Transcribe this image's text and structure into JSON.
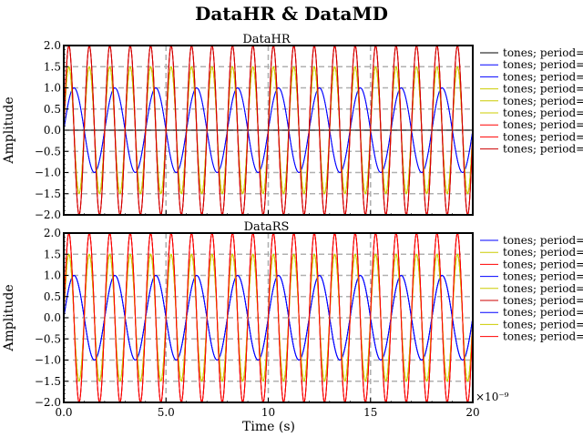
{
  "figure": {
    "title": "DataHR & DataMD",
    "xlabel": "Time (s)",
    "x_offset_text": "×10⁻⁹"
  },
  "chart_data": [
    {
      "type": "line",
      "title": "DataHR",
      "ylabel": "Amplitude",
      "xlabel": "",
      "xlim": [
        0,
        20
      ],
      "ylim": [
        -2.0,
        2.0
      ],
      "x_unit_scale": "1e-9",
      "xticks": [
        "0.0",
        "5.0",
        "10",
        "15",
        "20"
      ],
      "xtick_values": [
        0,
        5,
        10,
        15,
        20
      ],
      "yticks": [
        "2.0",
        "1.5",
        "1.0",
        "0.5",
        "0.0",
        "−0.5",
        "−1.0",
        "−1.5",
        "−2.0"
      ],
      "ytick_values": [
        2.0,
        1.5,
        1.0,
        0.5,
        0.0,
        -0.5,
        -1.0,
        -1.5,
        -2.0
      ],
      "grid": true,
      "legend_position": "outside-right",
      "series": [
        {
          "name": "tones; period=",
          "color": "#000000",
          "amplitude": 0,
          "period": 2.0,
          "phase": 0
        },
        {
          "name": "tones; period=",
          "color": "#0000ff",
          "amplitude": 1.0,
          "period": 2.0,
          "phase": 0
        },
        {
          "name": "tones; period=",
          "color": "#0000ff",
          "amplitude": 1.0,
          "period": 2.0,
          "phase": 0
        },
        {
          "name": "tones; period=",
          "color": "#cccc00",
          "amplitude": 1.5,
          "period": 1.0,
          "phase": 0
        },
        {
          "name": "tones; period=",
          "color": "#cccc00",
          "amplitude": 1.5,
          "period": 1.0,
          "phase": 0
        },
        {
          "name": "tones; period=",
          "color": "#cccc00",
          "amplitude": 1.5,
          "period": 1.0,
          "phase": 0
        },
        {
          "name": "tones; period=",
          "color": "#ff0000",
          "amplitude": 2.0,
          "period": 1.0,
          "phase": 0
        },
        {
          "name": "tones; period=",
          "color": "#ff0000",
          "amplitude": 2.0,
          "period": 1.0,
          "phase": 0
        },
        {
          "name": "tones; period=",
          "color": "#cc0000",
          "amplitude": 2.0,
          "period": 1.0,
          "phase": 0
        }
      ]
    },
    {
      "type": "line",
      "title": "DataRS",
      "ylabel": "Amplitude",
      "xlabel": "Time (s)",
      "xlim": [
        0,
        20
      ],
      "ylim": [
        -2.0,
        2.0
      ],
      "x_unit_scale": "1e-9",
      "xticks": [
        "0.0",
        "5.0",
        "10",
        "15",
        "20"
      ],
      "xtick_values": [
        0,
        5,
        10,
        15,
        20
      ],
      "yticks": [
        "2.0",
        "1.5",
        "1.0",
        "0.5",
        "0.0",
        "−0.5",
        "−1.0",
        "−1.5",
        "−2.0"
      ],
      "ytick_values": [
        2.0,
        1.5,
        1.0,
        0.5,
        0.0,
        -0.5,
        -1.0,
        -1.5,
        -2.0
      ],
      "grid": true,
      "legend_position": "outside-right",
      "series": [
        {
          "name": "tones; period=",
          "color": "#0000ff",
          "amplitude": 1.0,
          "period": 2.0,
          "phase": 0
        },
        {
          "name": "tones; period=",
          "color": "#cccc00",
          "amplitude": 1.5,
          "period": 1.0,
          "phase": 0
        },
        {
          "name": "tones; period=",
          "color": "#ff0000",
          "amplitude": 2.0,
          "period": 1.0,
          "phase": 0
        },
        {
          "name": "tones; period=",
          "color": "#0000ff",
          "amplitude": 1.0,
          "period": 2.0,
          "phase": 0
        },
        {
          "name": "tones; period=",
          "color": "#cccc00",
          "amplitude": 1.5,
          "period": 1.0,
          "phase": 0
        },
        {
          "name": "tones; period=",
          "color": "#cc0000",
          "amplitude": 2.0,
          "period": 1.0,
          "phase": 0
        },
        {
          "name": "tones; period=",
          "color": "#0000ff",
          "amplitude": 1.0,
          "period": 2.0,
          "phase": 0
        },
        {
          "name": "tones; period=",
          "color": "#cccc00",
          "amplitude": 1.5,
          "period": 1.0,
          "phase": 0
        },
        {
          "name": "tones; period=",
          "color": "#ff0000",
          "amplitude": 2.0,
          "period": 1.0,
          "phase": 0
        }
      ]
    }
  ]
}
